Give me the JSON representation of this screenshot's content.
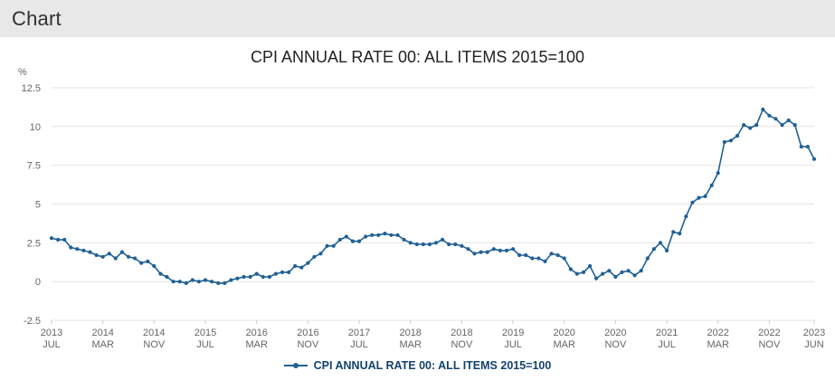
{
  "header": {
    "title": "Chart"
  },
  "chart_data": {
    "type": "line",
    "title": "CPI ANNUAL RATE 00: ALL ITEMS 2015=100",
    "ylabel": "%",
    "ylim": [
      -2.5,
      12.5
    ],
    "yticks": [
      -2.5,
      0,
      2.5,
      5,
      7.5,
      10,
      12.5
    ],
    "grid": true,
    "legend_position": "bottom",
    "legend": [
      "CPI ANNUAL RATE 00: ALL ITEMS 2015=100"
    ],
    "line_color": "#206095",
    "legend_text_color": "#12436d",
    "x_period": "monthly",
    "x_range_start": "2013 JUL",
    "x_range_end": "2023 JUN",
    "xticks": [
      {
        "index": 0,
        "year": "2013",
        "month": "JUL"
      },
      {
        "index": 8,
        "year": "2014",
        "month": "MAR"
      },
      {
        "index": 16,
        "year": "2014",
        "month": "NOV"
      },
      {
        "index": 24,
        "year": "2015",
        "month": "JUL"
      },
      {
        "index": 32,
        "year": "2016",
        "month": "MAR"
      },
      {
        "index": 40,
        "year": "2016",
        "month": "NOV"
      },
      {
        "index": 48,
        "year": "2017",
        "month": "JUL"
      },
      {
        "index": 56,
        "year": "2018",
        "month": "MAR"
      },
      {
        "index": 64,
        "year": "2018",
        "month": "NOV"
      },
      {
        "index": 72,
        "year": "2019",
        "month": "JUL"
      },
      {
        "index": 80,
        "year": "2020",
        "month": "MAR"
      },
      {
        "index": 88,
        "year": "2020",
        "month": "NOV"
      },
      {
        "index": 96,
        "year": "2021",
        "month": "JUL"
      },
      {
        "index": 104,
        "year": "2022",
        "month": "MAR"
      },
      {
        "index": 112,
        "year": "2022",
        "month": "NOV"
      },
      {
        "index": 119,
        "year": "2023",
        "month": "JUN"
      }
    ],
    "values": [
      2.8,
      2.7,
      2.7,
      2.2,
      2.1,
      2.0,
      1.9,
      1.7,
      1.6,
      1.8,
      1.5,
      1.9,
      1.6,
      1.5,
      1.2,
      1.3,
      1.0,
      0.5,
      0.3,
      0.0,
      0.0,
      -0.1,
      0.1,
      0.0,
      0.1,
      0.0,
      -0.1,
      -0.1,
      0.1,
      0.2,
      0.3,
      0.3,
      0.5,
      0.3,
      0.3,
      0.5,
      0.6,
      0.6,
      1.0,
      0.9,
      1.2,
      1.6,
      1.8,
      2.3,
      2.3,
      2.7,
      2.9,
      2.6,
      2.6,
      2.9,
      3.0,
      3.0,
      3.1,
      3.0,
      3.0,
      2.7,
      2.5,
      2.4,
      2.4,
      2.4,
      2.5,
      2.7,
      2.4,
      2.4,
      2.3,
      2.1,
      1.8,
      1.9,
      1.9,
      2.1,
      2.0,
      2.0,
      2.1,
      1.7,
      1.7,
      1.5,
      1.5,
      1.3,
      1.8,
      1.7,
      1.5,
      0.8,
      0.5,
      0.6,
      1.0,
      0.2,
      0.5,
      0.7,
      0.3,
      0.6,
      0.7,
      0.4,
      0.7,
      1.5,
      2.1,
      2.5,
      2.0,
      3.2,
      3.1,
      4.2,
      5.1,
      5.4,
      5.5,
      6.2,
      7.0,
      9.0,
      9.1,
      9.4,
      10.1,
      9.9,
      10.1,
      11.1,
      10.7,
      10.5,
      10.1,
      10.4,
      10.1,
      8.7,
      8.7,
      7.9
    ]
  }
}
